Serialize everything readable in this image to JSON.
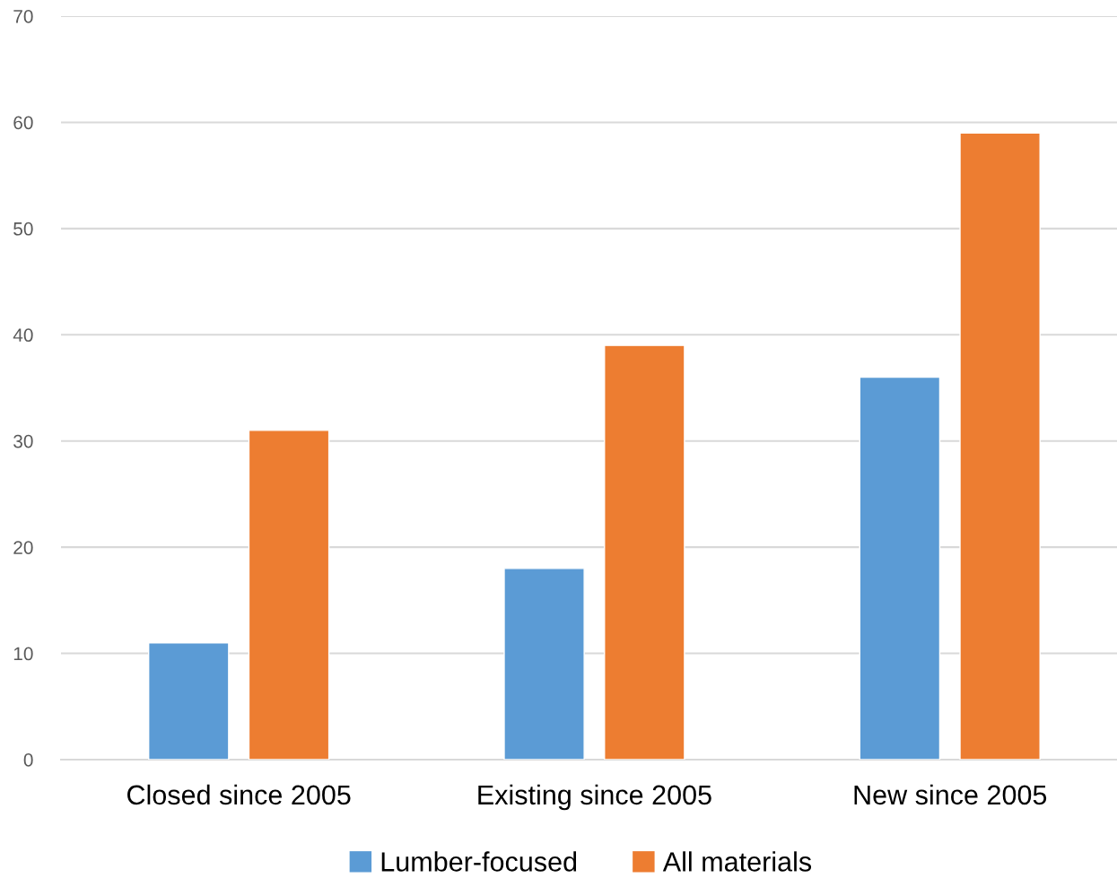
{
  "chart_data": {
    "type": "bar",
    "categories": [
      "Closed since 2005",
      "Existing since 2005",
      "New since 2005"
    ],
    "series": [
      {
        "name": "Lumber-focused",
        "color": "#5b9bd5",
        "values": [
          11,
          18,
          36
        ]
      },
      {
        "name": "All materials",
        "color": "#ed7d31",
        "values": [
          31,
          39,
          59
        ]
      }
    ],
    "ylim": [
      0,
      70
    ],
    "yticks": [
      0,
      10,
      20,
      30,
      40,
      50,
      60,
      70
    ],
    "grid": "y",
    "legend": "bottom"
  }
}
